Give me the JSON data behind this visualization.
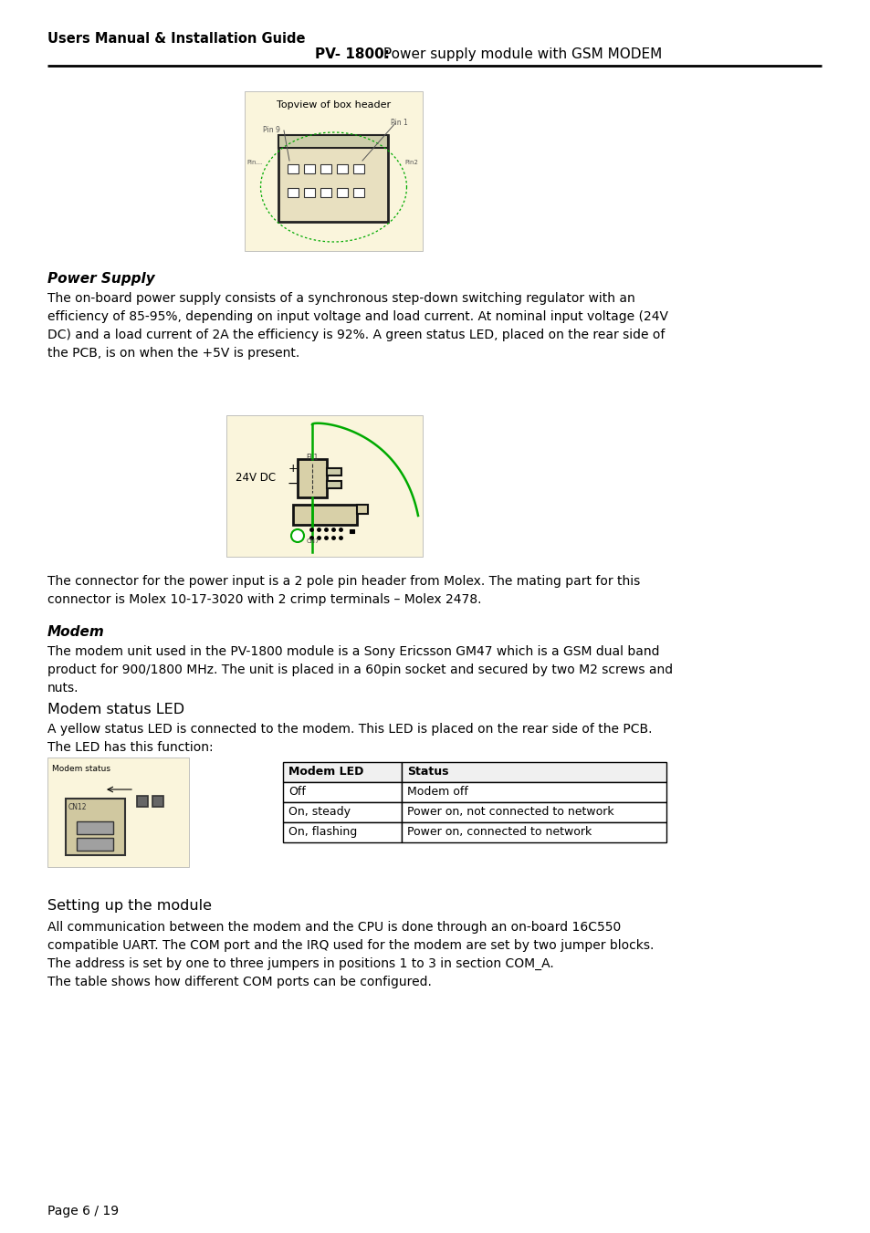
{
  "bg_color": "#ffffff",
  "header_left": "Users Manual & Installation Guide",
  "header_right_bold": "PV- 1800:",
  "header_right_normal": " Power supply module with GSM MODEM",
  "section1_title": "Power Supply",
  "section1_body": "The on-board power supply consists of a synchronous step-down switching regulator with an\nefficiency of 85-95%, depending on input voltage and load current. At nominal input voltage (24V\nDC) and a load current of 2A the efficiency is 92%. A green status LED, placed on the rear side of\nthe PCB, is on when the +5V is present.",
  "section2_title": "Modem",
  "section2_body": "The modem unit used in the PV-1800 module is a Sony Ericsson GM47 which is a GSM dual band\nproduct for 900/1800 MHz. The unit is placed in a 60pin socket and secured by two M2 screws and\nnuts.",
  "section3_title": "Modem status LED",
  "section3_body": "A yellow status LED is connected to the modem. This LED is placed on the rear side of the PCB.\nThe LED has this function:",
  "table_headers": [
    "Modem LED",
    "Status"
  ],
  "table_rows": [
    [
      "Off",
      "Modem off"
    ],
    [
      "On, steady",
      "Power on, not connected to network"
    ],
    [
      "On, flashing",
      "Power on, connected to network"
    ]
  ],
  "section4_title": "Setting up the module",
  "section4_body": "All communication between the modem and the CPU is done through an on-board 16C550\ncompatible UART. The COM port and the IRQ used for the modem are set by two jumper blocks.\nThe address is set by one to three jumpers in positions 1 to 3 in section COM_A.\nThe table shows how different COM ports can be configured.",
  "footer": "Page 6 / 19",
  "diagram1_label": "Topview of box header",
  "diagram2_label": "24V DC",
  "connector_text": "The connector for the power input is a 2 pole pin header from Molex. The mating part for this\nconnector is Molex 10-17-3020 with 2 crimp terminals – Molex 2478.",
  "fig_bg": "#faf5dc",
  "modem_status_label": "Modem status"
}
